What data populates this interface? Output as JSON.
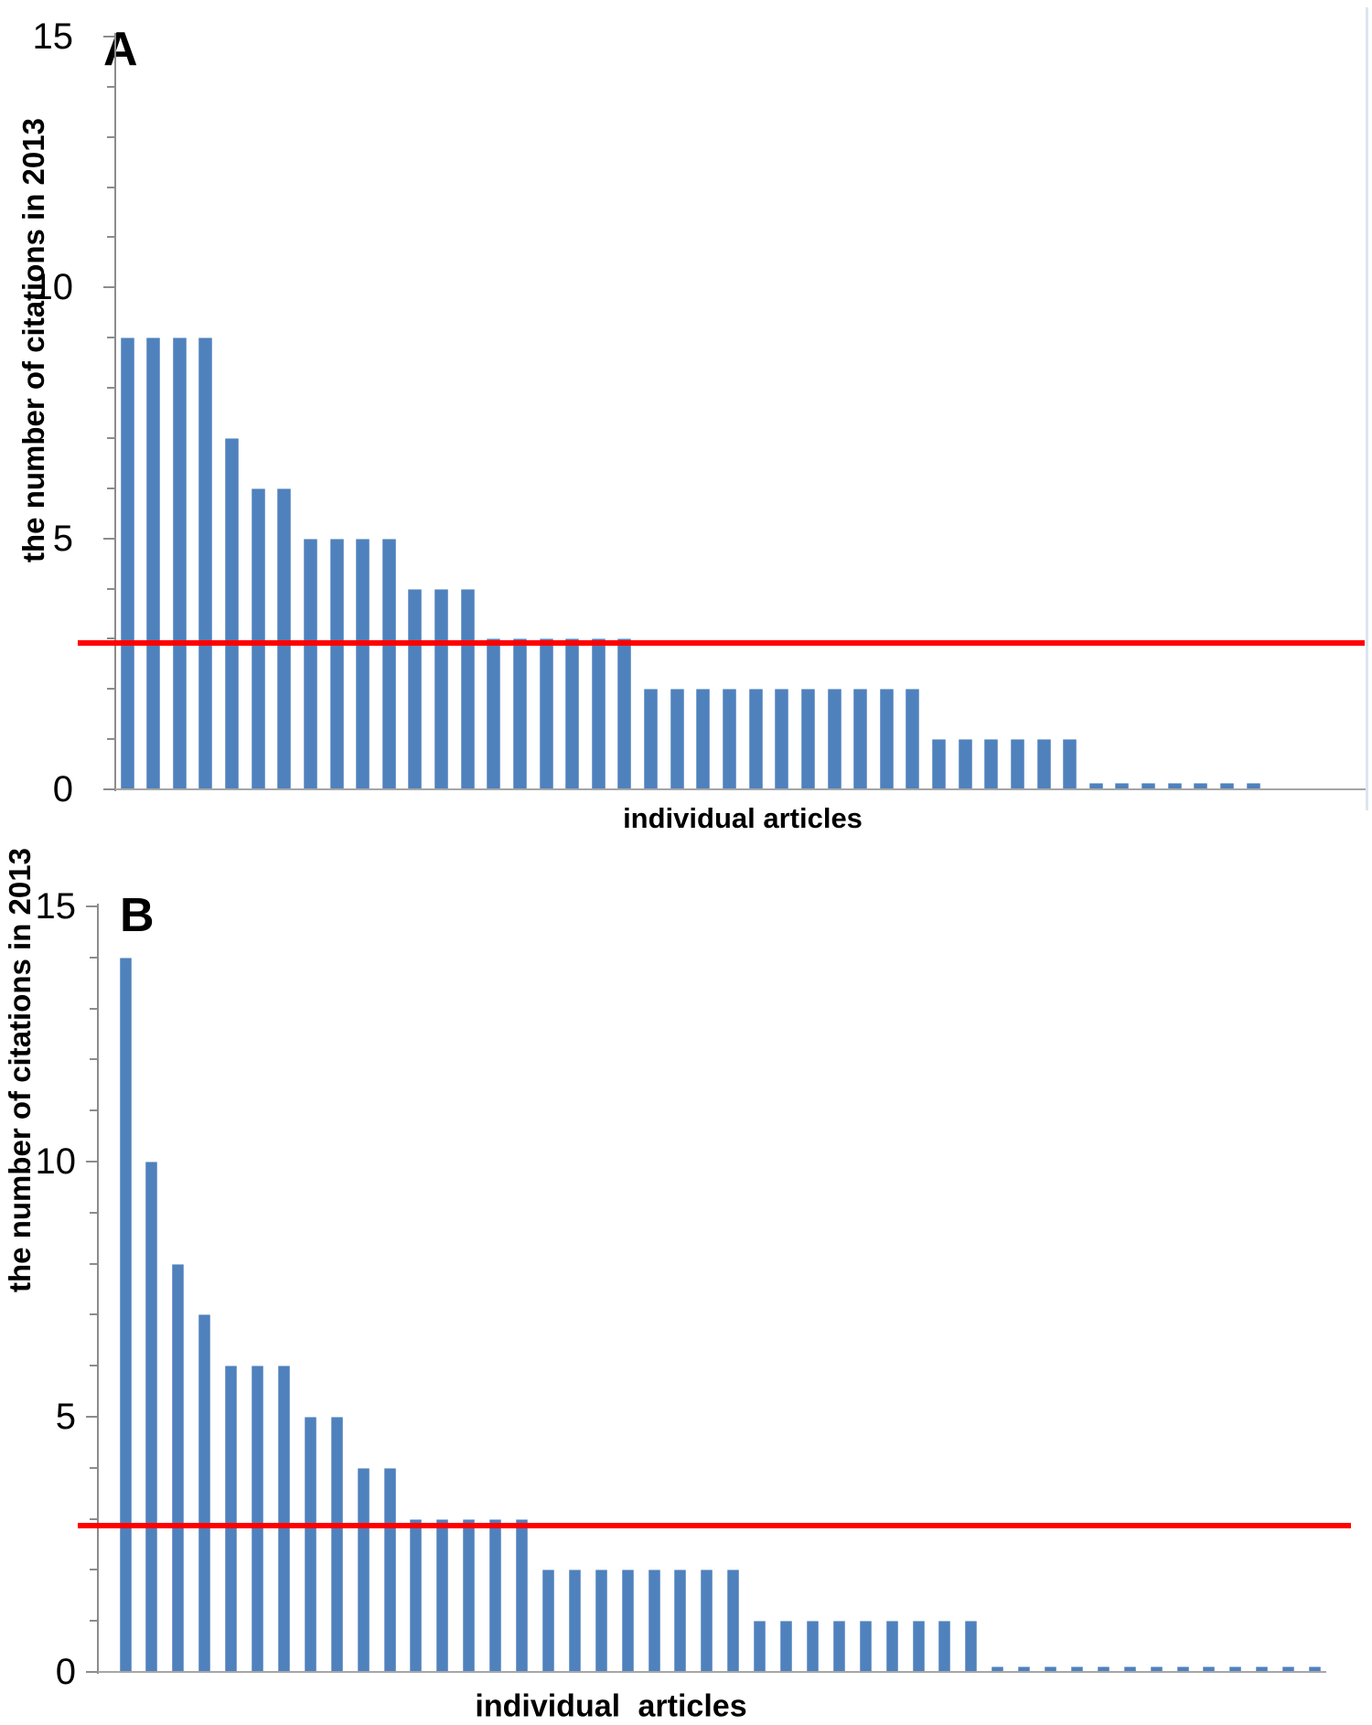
{
  "colors": {
    "bar": "#4F81BD",
    "threshold_line": "#FF0000",
    "axis": "#8C8C8C",
    "baseline": "#A6A6A6",
    "text": "#000000",
    "panel_border": "#DCE6F1"
  },
  "chart_data": [
    {
      "type": "bar",
      "panel_label": "A",
      "title": "A",
      "xlabel": "individual articles",
      "ylabel": "the number of citations in 2013",
      "ylim": [
        0,
        15
      ],
      "ytick_labels": [
        "15",
        "10",
        "5",
        "0"
      ],
      "ytick_values": [
        15,
        10,
        5,
        0
      ],
      "minor_tick_step": 1,
      "grid": false,
      "legend": null,
      "categories_note": "one bar per individual article, unlabeled",
      "threshold_line": {
        "value": 3
      },
      "values": [
        9,
        9,
        9,
        9,
        7,
        6,
        6,
        5,
        5,
        5,
        5,
        4,
        4,
        4,
        3,
        3,
        3,
        3,
        3,
        3,
        2,
        2,
        2,
        2,
        2,
        2,
        2,
        2,
        2,
        2,
        2,
        1,
        1,
        1,
        1,
        1,
        1,
        0.13,
        0.13,
        0.13,
        0.13,
        0.13,
        0.13,
        0.13
      ]
    },
    {
      "type": "bar",
      "panel_label": "B",
      "title": "B",
      "xlabel": "individual articles",
      "ylabel": "the number of citations in 2013",
      "ylim": [
        0,
        15
      ],
      "ytick_labels": [
        "15",
        "10",
        "5",
        "0"
      ],
      "ytick_values": [
        15,
        10,
        5,
        0
      ],
      "minor_tick_step": 1,
      "grid": false,
      "legend": null,
      "categories_note": "one bar per individual article, unlabeled",
      "threshold_line": {
        "value": 3
      },
      "values": [
        14,
        10,
        8,
        7,
        6,
        6,
        6,
        5,
        5,
        4,
        4,
        3,
        3,
        3,
        3,
        3,
        2,
        2,
        2,
        2,
        2,
        2,
        2,
        2,
        1,
        1,
        1,
        1,
        1,
        1,
        1,
        1,
        1,
        0.1,
        0.1,
        0.1,
        0.1,
        0.1,
        0.1,
        0.1,
        0.1,
        0.1,
        0.1,
        0.1,
        0.1,
        0.1
      ]
    }
  ]
}
